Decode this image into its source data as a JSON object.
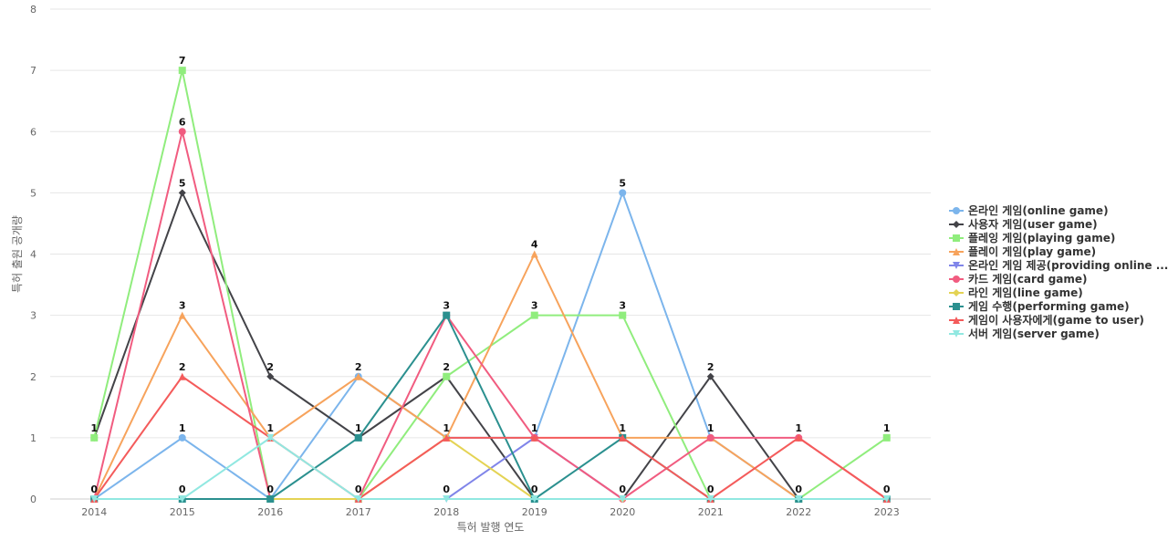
{
  "chart_data": {
    "type": "line",
    "title": "",
    "xlabel": "특허 발행 연도",
    "ylabel": "특허 출원 공개량",
    "ylim": [
      0,
      8
    ],
    "yticks": [
      0,
      1,
      2,
      3,
      4,
      5,
      6,
      7,
      8
    ],
    "grid": true,
    "legend_position": "right",
    "categories": [
      "2014",
      "2015",
      "2016",
      "2017",
      "2018",
      "2019",
      "2020",
      "2021",
      "2022",
      "2023"
    ],
    "series": [
      {
        "name": "온라인 게임(online game)",
        "color": "#7cb5ec",
        "marker": "circle",
        "values": [
          0,
          1,
          0,
          2,
          1,
          1,
          5,
          1,
          0,
          0
        ]
      },
      {
        "name": "사용자 게임(user game)",
        "color": "#434348",
        "marker": "diamond",
        "values": [
          1,
          5,
          2,
          1,
          2,
          0,
          0,
          2,
          0,
          0
        ]
      },
      {
        "name": "플레잉 게임(playing game)",
        "color": "#90ed7d",
        "marker": "square",
        "values": [
          1,
          7,
          0,
          0,
          2,
          3,
          3,
          0,
          0,
          1
        ]
      },
      {
        "name": "플레이 게임(play game)",
        "color": "#f7a35c",
        "marker": "triangle",
        "values": [
          0,
          3,
          1,
          2,
          1,
          4,
          1,
          1,
          0,
          0
        ]
      },
      {
        "name": "온라인 게임 제공(providing online ...",
        "color": "#8085e9",
        "marker": "triangle-down",
        "values": [
          0,
          0,
          0,
          0,
          0,
          1,
          0,
          0,
          0,
          0
        ]
      },
      {
        "name": "카드 게임(card game)",
        "color": "#f15c80",
        "marker": "circle",
        "values": [
          0,
          6,
          0,
          0,
          3,
          1,
          0,
          1,
          1,
          0
        ]
      },
      {
        "name": "라인 게임(line game)",
        "color": "#e4d354",
        "marker": "diamond",
        "values": [
          0,
          0,
          0,
          0,
          1,
          0,
          0,
          0,
          0,
          0
        ]
      },
      {
        "name": "게임 수행(performing game)",
        "color": "#2b908f",
        "marker": "square",
        "values": [
          0,
          0,
          0,
          1,
          3,
          0,
          1,
          0,
          0,
          0
        ]
      },
      {
        "name": "게임이 사용자에게(game to user)",
        "color": "#f45b5b",
        "marker": "triangle",
        "values": [
          0,
          2,
          1,
          0,
          1,
          1,
          1,
          0,
          1,
          0
        ]
      },
      {
        "name": "서버 게임(server game)",
        "color": "#91e8e1",
        "marker": "triangle-down",
        "values": [
          0,
          0,
          1,
          0,
          0,
          0,
          0,
          0,
          0,
          0
        ]
      }
    ],
    "data_labels": [
      {
        "x": "2014",
        "value": 1,
        "text": "1"
      },
      {
        "x": "2014",
        "value": 0,
        "text": "0"
      },
      {
        "x": "2015",
        "value": 7,
        "text": "7"
      },
      {
        "x": "2015",
        "value": 6,
        "text": "6"
      },
      {
        "x": "2015",
        "value": 5,
        "text": "5"
      },
      {
        "x": "2015",
        "value": 3,
        "text": "3"
      },
      {
        "x": "2015",
        "value": 2,
        "text": "2"
      },
      {
        "x": "2015",
        "value": 1,
        "text": "1"
      },
      {
        "x": "2015",
        "value": 0,
        "text": "0"
      },
      {
        "x": "2016",
        "value": 2,
        "text": "2"
      },
      {
        "x": "2016",
        "value": 1,
        "text": "1"
      },
      {
        "x": "2016",
        "value": 0,
        "text": "0"
      },
      {
        "x": "2017",
        "value": 2,
        "text": "2"
      },
      {
        "x": "2017",
        "value": 1,
        "text": "1"
      },
      {
        "x": "2017",
        "value": 0,
        "text": "0"
      },
      {
        "x": "2018",
        "value": 3,
        "text": "3"
      },
      {
        "x": "2018",
        "value": 2,
        "text": "2"
      },
      {
        "x": "2018",
        "value": 1,
        "text": "1"
      },
      {
        "x": "2018",
        "value": 0,
        "text": "0"
      },
      {
        "x": "2019",
        "value": 4,
        "text": "4"
      },
      {
        "x": "2019",
        "value": 3,
        "text": "3"
      },
      {
        "x": "2019",
        "value": 1,
        "text": "1"
      },
      {
        "x": "2019",
        "value": 0,
        "text": "0"
      },
      {
        "x": "2020",
        "value": 5,
        "text": "5"
      },
      {
        "x": "2020",
        "value": 3,
        "text": "3"
      },
      {
        "x": "2020",
        "value": 1,
        "text": "1"
      },
      {
        "x": "2020",
        "value": 0,
        "text": "0"
      },
      {
        "x": "2021",
        "value": 2,
        "text": "2"
      },
      {
        "x": "2021",
        "value": 1,
        "text": "1"
      },
      {
        "x": "2021",
        "value": 0,
        "text": "0"
      },
      {
        "x": "2022",
        "value": 1,
        "text": "1"
      },
      {
        "x": "2022",
        "value": 0,
        "text": "0"
      },
      {
        "x": "2023",
        "value": 1,
        "text": "1"
      },
      {
        "x": "2023",
        "value": 0,
        "text": "0"
      }
    ]
  }
}
